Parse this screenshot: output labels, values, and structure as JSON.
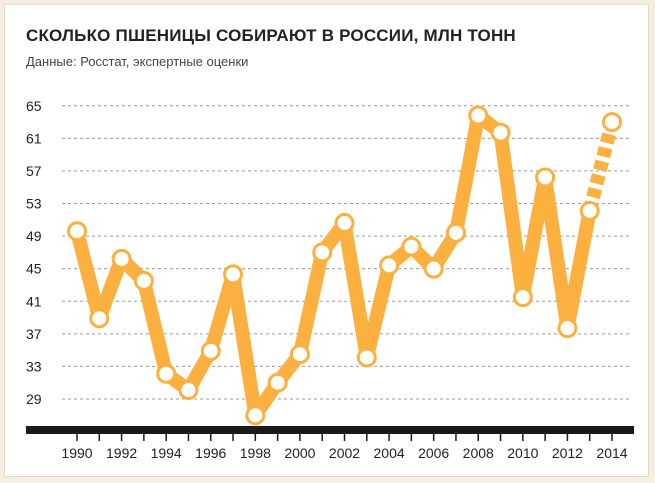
{
  "chart_data": {
    "type": "line",
    "title": "СКОЛЬКО ПШЕНИЦЫ СОБИРАЮТ В РОССИИ, МЛН ТОНН",
    "subtitle": "Данные: Росстат, экспертные оценки",
    "xlabel": "",
    "ylabel": "",
    "x": [
      1990,
      1991,
      1992,
      1993,
      1994,
      1995,
      1996,
      1997,
      1998,
      1999,
      2000,
      2001,
      2002,
      2003,
      2004,
      2005,
      2006,
      2007,
      2008,
      2009,
      2010,
      2011,
      2012,
      2013,
      2014
    ],
    "values": [
      49.6,
      38.9,
      46.2,
      43.5,
      32.1,
      30.1,
      34.9,
      44.3,
      27.0,
      31.0,
      34.5,
      47.0,
      50.6,
      34.1,
      45.4,
      47.7,
      45.0,
      49.4,
      63.8,
      61.7,
      41.5,
      56.2,
      37.7,
      52.1,
      63.0
    ],
    "projected_from": 2013,
    "x_tick_labels": [
      "1990",
      "1992",
      "1994",
      "1996",
      "1998",
      "2000",
      "2002",
      "2004",
      "2006",
      "2008",
      "2010",
      "2012",
      "2014"
    ],
    "y_ticks": [
      29,
      33,
      37,
      41,
      45,
      49,
      53,
      57,
      61,
      65
    ],
    "ylim": [
      25.5,
      66
    ],
    "xlim": [
      1990,
      2014
    ],
    "grid": true,
    "legend": "none",
    "colors": {
      "line": "#fbb040",
      "marker_fill": "#ffffff",
      "marker_stroke": "#fbb040",
      "grid": "#9a9a9a",
      "axis": "#1a1a1a",
      "text": "#222222"
    }
  }
}
